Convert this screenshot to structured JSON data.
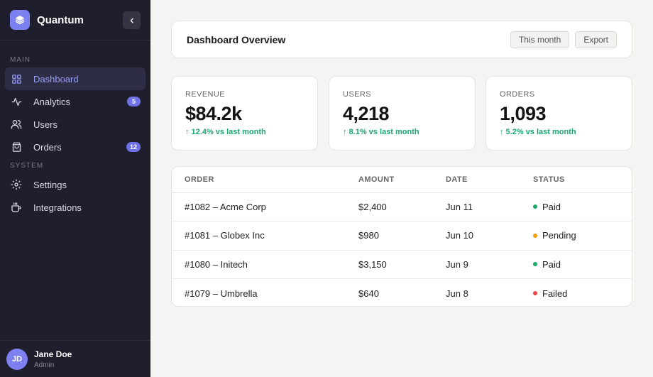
{
  "brand": {
    "name": "Quantum",
    "icon": "layers-icon",
    "color": "#7c80f0"
  },
  "sidebar": {
    "sections": [
      {
        "label": "MAIN",
        "items": [
          {
            "label": "Dashboard",
            "icon": "grid-icon",
            "active": true
          },
          {
            "label": "Analytics",
            "icon": "activity-icon",
            "badge": "5"
          },
          {
            "label": "Users",
            "icon": "users-icon"
          },
          {
            "label": "Orders",
            "icon": "shopping-bag-icon",
            "badge": "12"
          }
        ]
      },
      {
        "label": "SYSTEM",
        "items": [
          {
            "label": "Settings",
            "icon": "settings-icon"
          },
          {
            "label": "Integrations",
            "icon": "plug-icon"
          }
        ]
      }
    ]
  },
  "user": {
    "initials": "JD",
    "name": "Jane Doe",
    "role": "Admin"
  },
  "header": {
    "title": "Dashboard Overview",
    "period_button": "This month",
    "export_button": "Export"
  },
  "stats": [
    {
      "label": "REVENUE",
      "value": "$84.2k",
      "delta": "↑ 12.4% vs last month"
    },
    {
      "label": "USERS",
      "value": "4,218",
      "delta": "↑ 8.1% vs last month"
    },
    {
      "label": "ORDERS",
      "value": "1,093",
      "delta": "↑ 5.2% vs last month"
    }
  ],
  "orders": {
    "columns": [
      "ORDER",
      "AMOUNT",
      "DATE",
      "STATUS"
    ],
    "rows": [
      {
        "order": "#1082 – Acme Corp",
        "amount": "$2,400",
        "date": "Jun 11",
        "status": "Paid",
        "status_color": "#1aa86e"
      },
      {
        "order": "#1081 – Globex Inc",
        "amount": "$980",
        "date": "Jun 10",
        "status": "Pending",
        "status_color": "#f59e0b"
      },
      {
        "order": "#1080 – Initech",
        "amount": "$3,150",
        "date": "Jun 9",
        "status": "Paid",
        "status_color": "#1aa86e"
      },
      {
        "order": "#1079 – Umbrella",
        "amount": "$640",
        "date": "Jun 8",
        "status": "Failed",
        "status_color": "#ef4444"
      }
    ]
  },
  "colors": {
    "accent": "#7c80f0",
    "sidebar_bg": "#1e1e2d",
    "positive": "#1aa86e"
  }
}
